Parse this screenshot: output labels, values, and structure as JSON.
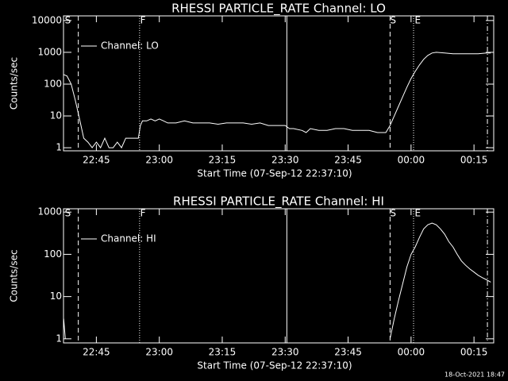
{
  "chart_data": [
    {
      "type": "line",
      "title": "RHESSI PARTICLE_RATE Channel: LO",
      "ylabel": "Counts/sec",
      "xlabel": "Start Time (07-Sep-12 22:37:10)",
      "log_y": true,
      "legend": "top-left",
      "xlim": [
        37.17,
        139.7
      ],
      "xticks": [
        {
          "value": 45,
          "label": "22:45"
        },
        {
          "value": 60,
          "label": "23:00"
        },
        {
          "value": 75,
          "label": "23:15"
        },
        {
          "value": 90,
          "label": "23:30"
        },
        {
          "value": 105,
          "label": "23:45"
        },
        {
          "value": 120,
          "label": "00:00"
        },
        {
          "value": 135,
          "label": "00:15"
        }
      ],
      "ylim": [
        0.8,
        14000
      ],
      "yticks": [
        1,
        10,
        100,
        1000,
        10000
      ],
      "flags": [
        {
          "label": "S",
          "x": 38.2
        },
        {
          "label": "F",
          "x": 56.1
        },
        {
          "label": "S",
          "x": 115.7
        },
        {
          "label": "E",
          "x": 121.6
        }
      ],
      "vlines": [
        {
          "x": 40.7,
          "style": "dashed"
        },
        {
          "x": 55.3,
          "style": "dotted"
        },
        {
          "x": 90.4,
          "style": "solid"
        },
        {
          "x": 115,
          "style": "dashed"
        },
        {
          "x": 120.6,
          "style": "dotted"
        },
        {
          "x": 138.2,
          "style": "dashdot"
        }
      ],
      "series": [
        {
          "name": "Channel: LO",
          "color": "#ffffff",
          "x": [
            37.2,
            38,
            39,
            40,
            41,
            42,
            43,
            44,
            45,
            46,
            47,
            48,
            49,
            50,
            51,
            52,
            53,
            54,
            55,
            55.5,
            56,
            57,
            58,
            59,
            60,
            61,
            62,
            64,
            66,
            68,
            70,
            72,
            74,
            76,
            78,
            80,
            82,
            84,
            86,
            88,
            90,
            91,
            92,
            94,
            95,
            96,
            98,
            100,
            102,
            104,
            106,
            108,
            110,
            112,
            114,
            115,
            116,
            117,
            118,
            119,
            120,
            121,
            122,
            123,
            124,
            125,
            126,
            128,
            130,
            132,
            134,
            136,
            138,
            139
          ],
          "values": [
            200,
            180,
            100,
            30,
            8,
            2,
            1.5,
            1,
            1.5,
            1,
            2,
            1,
            1,
            1.5,
            1,
            2,
            2,
            2,
            2,
            5,
            7,
            7,
            8,
            7,
            8,
            7,
            6,
            6,
            7,
            6,
            6,
            6,
            5.5,
            6,
            6,
            6,
            5.5,
            6,
            5,
            5,
            5,
            4,
            4,
            3.5,
            3,
            4,
            3.5,
            3.5,
            4,
            4,
            3.5,
            3.5,
            3.5,
            3,
            3,
            5,
            10,
            20,
            40,
            80,
            150,
            250,
            400,
            600,
            800,
            950,
            1000,
            950,
            900,
            900,
            900,
            900,
            950,
            950
          ]
        }
      ]
    },
    {
      "type": "line",
      "title": "RHESSI PARTICLE_RATE Channel: HI",
      "ylabel": "Counts/sec",
      "xlabel": "Start Time (07-Sep-12 22:37:10)",
      "log_y": true,
      "legend": "top-left",
      "xlim": [
        37.17,
        139.7
      ],
      "xticks": [
        {
          "value": 45,
          "label": "22:45"
        },
        {
          "value": 60,
          "label": "23:00"
        },
        {
          "value": 75,
          "label": "23:15"
        },
        {
          "value": 90,
          "label": "23:30"
        },
        {
          "value": 105,
          "label": "23:45"
        },
        {
          "value": 120,
          "label": "00:00"
        },
        {
          "value": 135,
          "label": "00:15"
        }
      ],
      "ylim": [
        0.8,
        1200
      ],
      "yticks": [
        1,
        10,
        100,
        1000
      ],
      "flags": [
        {
          "label": "S",
          "x": 38.2
        },
        {
          "label": "F",
          "x": 56.1
        },
        {
          "label": "S",
          "x": 115.7
        },
        {
          "label": "E",
          "x": 121.6
        }
      ],
      "vlines": [
        {
          "x": 40.7,
          "style": "dashed"
        },
        {
          "x": 55.3,
          "style": "dotted"
        },
        {
          "x": 90.4,
          "style": "solid"
        },
        {
          "x": 115,
          "style": "dashed"
        },
        {
          "x": 120.6,
          "style": "dotted"
        },
        {
          "x": 138.2,
          "style": "dashdot"
        }
      ],
      "series": [
        {
          "name": "Channel: HI",
          "color": "#ffffff",
          "x": [
            37.2,
            37.6,
            76,
            115,
            116,
            117,
            118,
            119,
            120,
            121,
            122,
            123,
            124,
            125,
            126,
            127,
            128,
            129,
            130,
            131,
            132,
            133,
            134,
            135,
            136,
            137,
            138,
            139
          ],
          "values": [
            3,
            1,
            null,
            1,
            3,
            8,
            20,
            50,
            100,
            150,
            250,
            400,
            500,
            550,
            500,
            400,
            300,
            200,
            150,
            100,
            70,
            55,
            45,
            38,
            32,
            28,
            25,
            22
          ]
        }
      ]
    }
  ],
  "footer": "18-Oct-2021 18:47"
}
